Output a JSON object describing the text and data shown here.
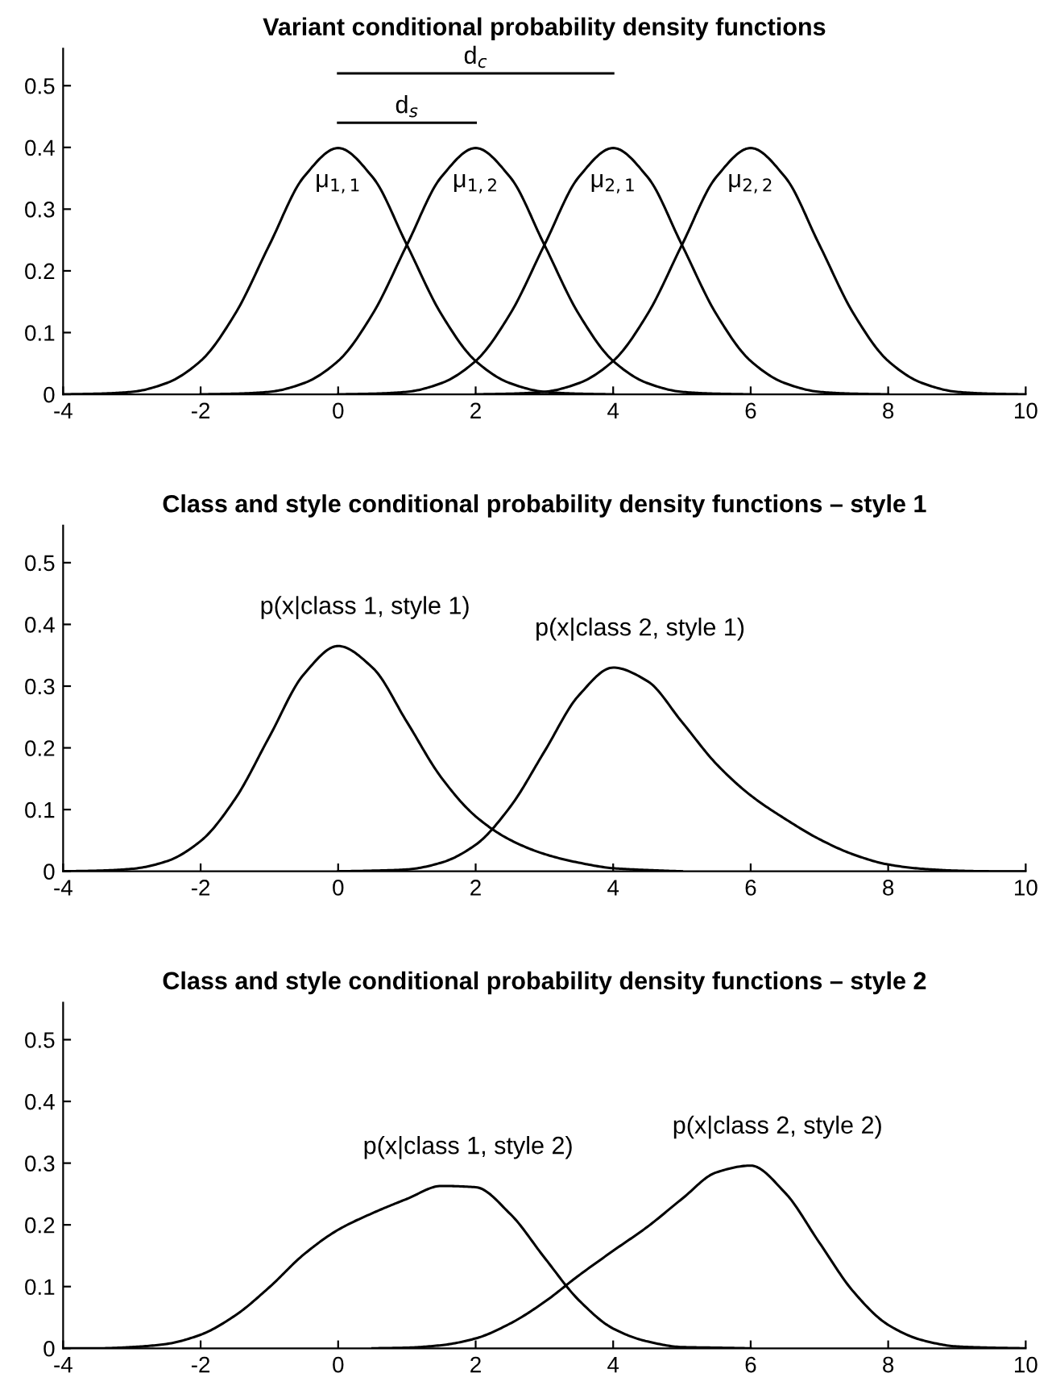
{
  "chart_data": [
    {
      "type": "line",
      "title": "Variant conditional probability density functions",
      "x": [
        -4,
        -3.5,
        -3,
        -2.5,
        -2,
        -1.5,
        -1,
        -0.5,
        0,
        0.5,
        1,
        1.5,
        2,
        2.5,
        3,
        3.5,
        4,
        4.5,
        5,
        5.5,
        6,
        6.5,
        7,
        7.5,
        8,
        8.5,
        9,
        9.5,
        10
      ],
      "series": [
        {
          "color": "#000000",
          "values": [
            0,
            0.001,
            0.004,
            0.018,
            0.054,
            0.13,
            0.242,
            0.352,
            0.399,
            0.352,
            0.242,
            0.13,
            0.054,
            0.018,
            0.004,
            0.001,
            0,
            null,
            null,
            null,
            null,
            null,
            null,
            null,
            null,
            null,
            null,
            null,
            null
          ]
        },
        {
          "color": "#000000",
          "values": [
            null,
            null,
            null,
            null,
            0,
            0.001,
            0.004,
            0.018,
            0.054,
            0.13,
            0.242,
            0.352,
            0.399,
            0.352,
            0.242,
            0.13,
            0.054,
            0.018,
            0.004,
            0.001,
            0,
            null,
            null,
            null,
            null,
            null,
            null,
            null,
            null
          ]
        },
        {
          "color": "#000000",
          "values": [
            null,
            null,
            null,
            null,
            null,
            null,
            null,
            null,
            0,
            0.001,
            0.004,
            0.018,
            0.054,
            0.13,
            0.242,
            0.352,
            0.399,
            0.352,
            0.242,
            0.13,
            0.054,
            0.018,
            0.004,
            0.001,
            0,
            null,
            null,
            null,
            null
          ]
        },
        {
          "color": "#000000",
          "values": [
            null,
            null,
            null,
            null,
            null,
            null,
            null,
            null,
            null,
            null,
            null,
            null,
            0,
            0.001,
            0.004,
            0.018,
            0.054,
            0.13,
            0.242,
            0.352,
            0.399,
            0.352,
            0.242,
            0.13,
            0.054,
            0.018,
            0.004,
            0.001,
            0
          ]
        },
        {
          "color": "#000000",
          "x": [
            0,
            4
          ],
          "values": [
            0.52,
            0.52
          ]
        },
        {
          "color": "#000000",
          "x": [
            0,
            2
          ],
          "values": [
            0.44,
            0.44
          ]
        }
      ],
      "annotations": [
        "μ$_{1,1}$",
        "μ$_{1,2}$",
        "μ$_{2,1}$",
        "μ$_{2,2}$",
        "d$_{c}$",
        "d$_{s}$"
      ],
      "xlim": [
        -4,
        10
      ],
      "ylim": [
        0,
        0.56
      ],
      "xticks": [
        -4,
        -2,
        0,
        2,
        4,
        6,
        8,
        10
      ],
      "yticks": [
        0,
        0.1,
        0.2,
        0.3,
        0.4,
        0.5
      ],
      "grid": false
    },
    {
      "type": "line",
      "title": "Class and style conditional probability density functions – style 1",
      "x": [
        -4,
        -3.5,
        -3,
        -2.5,
        -2,
        -1.5,
        -1,
        -0.5,
        0,
        0.5,
        1,
        1.5,
        2,
        2.5,
        3,
        3.5,
        4,
        4.5,
        5,
        5.5,
        6,
        6.5,
        7,
        7.5,
        8,
        8.5,
        9,
        9.5,
        10
      ],
      "series": [
        {
          "color": "#000000",
          "values": [
            0,
            0.001,
            0.004,
            0.016,
            0.049,
            0.117,
            0.218,
            0.319,
            0.365,
            0.33,
            0.242,
            0.152,
            0.089,
            0.051,
            0.028,
            0.014,
            0.005,
            0.002,
            0,
            null,
            null,
            null,
            null,
            null,
            null,
            null,
            null,
            null,
            null
          ]
        },
        {
          "color": "#000000",
          "values": [
            null,
            null,
            null,
            null,
            null,
            null,
            null,
            null,
            0,
            0.001,
            0.003,
            0.014,
            0.043,
            0.104,
            0.194,
            0.285,
            0.33,
            0.308,
            0.242,
            0.174,
            0.123,
            0.085,
            0.052,
            0.027,
            0.011,
            0.004,
            0.001,
            0,
            0
          ]
        }
      ],
      "annotations": [
        "p(x|class 1, style 1)",
        "p(x|class 2, style 1)"
      ],
      "xlim": [
        -4,
        10
      ],
      "ylim": [
        0,
        0.56
      ],
      "xticks": [
        -4,
        -2,
        0,
        2,
        4,
        6,
        8,
        10
      ],
      "yticks": [
        0,
        0.1,
        0.2,
        0.3,
        0.4,
        0.5
      ],
      "grid": false
    },
    {
      "type": "line",
      "title": "Class and style conditional probability density functions – style 2",
      "x": [
        -4,
        -3.5,
        -3,
        -2.5,
        -2,
        -1.5,
        -1,
        -0.5,
        0,
        0.5,
        1,
        1.5,
        2,
        2.5,
        3,
        3.5,
        4,
        4.5,
        5,
        5.5,
        6,
        6.5,
        7,
        7.5,
        8,
        8.5,
        9,
        9.5,
        10
      ],
      "series": [
        {
          "color": "#000000",
          "values": [
            0,
            0,
            0.002,
            0.007,
            0.022,
            0.053,
            0.099,
            0.152,
            0.192,
            0.219,
            0.242,
            0.263,
            0.261,
            0.218,
            0.147,
            0.078,
            0.032,
            0.011,
            0.002,
            0.001,
            0,
            null,
            null,
            null,
            null,
            null,
            null,
            null,
            null
          ]
        },
        {
          "color": "#000000",
          "values": [
            null,
            null,
            null,
            null,
            null,
            null,
            null,
            null,
            null,
            0,
            0.001,
            0.005,
            0.016,
            0.04,
            0.075,
            0.118,
            0.158,
            0.197,
            0.242,
            0.285,
            0.296,
            0.252,
            0.171,
            0.091,
            0.038,
            0.013,
            0.003,
            0.001,
            0
          ]
        }
      ],
      "annotations": [
        "p(x|class 1, style 2)",
        "p(x|class 2, style 2)"
      ],
      "xlim": [
        -4,
        10
      ],
      "ylim": [
        0,
        0.56
      ],
      "xticks": [
        -4,
        -2,
        0,
        2,
        4,
        6,
        8,
        10
      ],
      "yticks": [
        0,
        0.1,
        0.2,
        0.3,
        0.4,
        0.5
      ],
      "grid": false
    }
  ]
}
